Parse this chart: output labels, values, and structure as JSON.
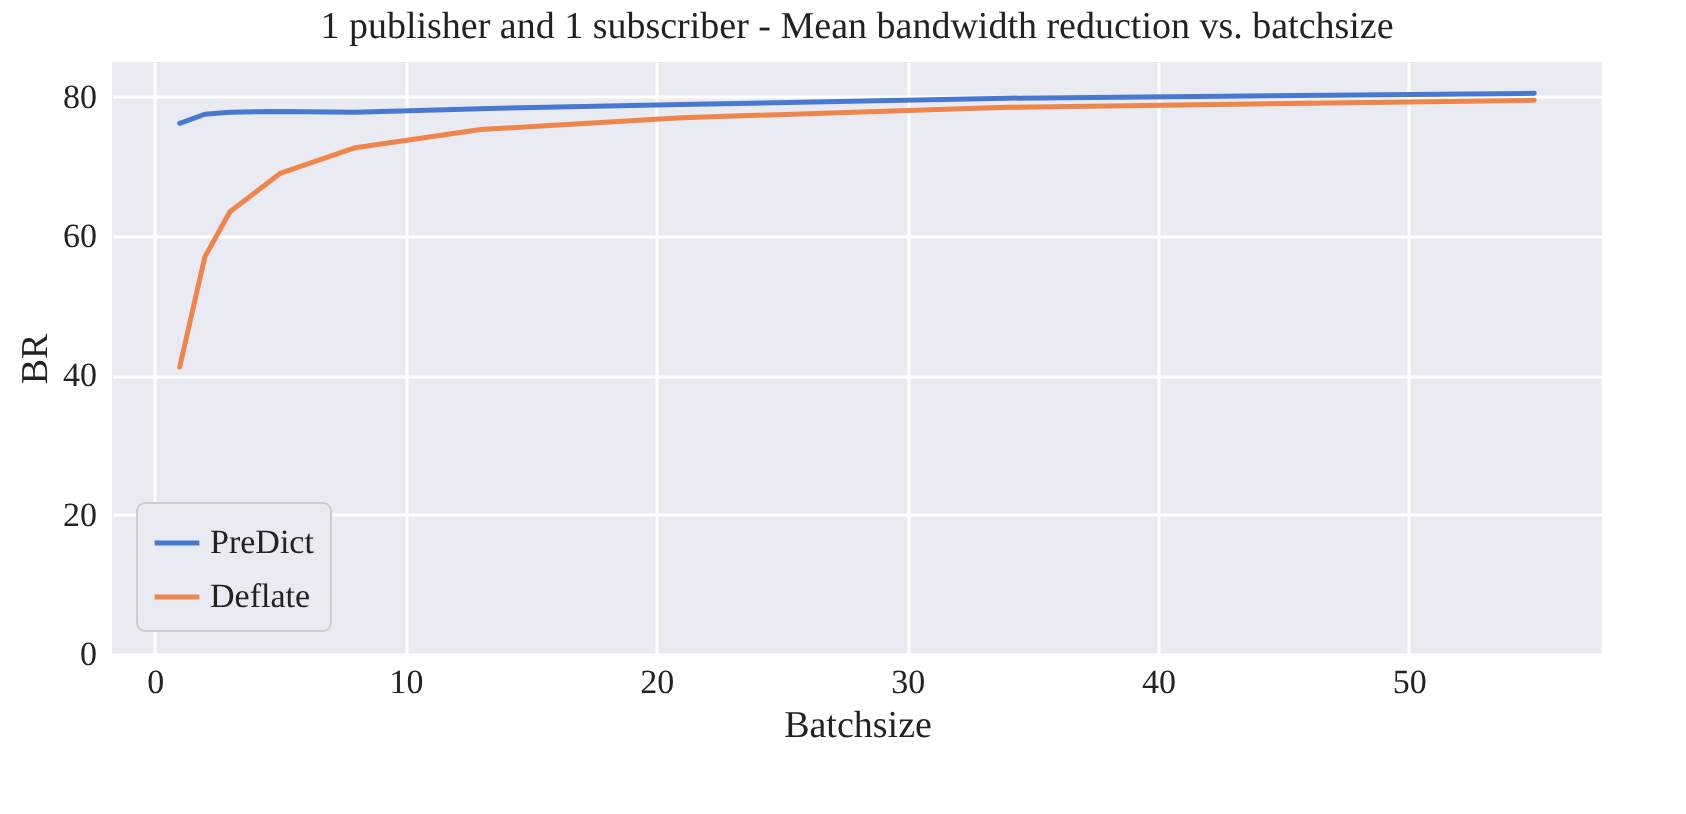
{
  "chart_data": {
    "type": "line",
    "title": "1 publisher and 1 subscriber - Mean bandwidth reduction vs. batchsize",
    "xlabel": "Batchsize",
    "ylabel": "BR",
    "x": [
      1,
      2,
      3,
      5,
      8,
      13,
      21,
      34,
      55
    ],
    "series": [
      {
        "name": "PreDict",
        "color": "#4878d0",
        "values": [
          76.2,
          77.5,
          77.8,
          77.9,
          77.8,
          78.3,
          78.9,
          79.8,
          80.5
        ]
      },
      {
        "name": "Deflate",
        "color": "#ee854a",
        "values": [
          41.2,
          57,
          63.5,
          69,
          72.7,
          75.3,
          77,
          78.5,
          79.5
        ]
      }
    ],
    "xlim": [
      -1.7,
      57.7
    ],
    "xticks": [
      0,
      10,
      20,
      30,
      40,
      50
    ],
    "ylim": [
      0,
      85
    ],
    "yticks": [
      0,
      20,
      40,
      60,
      80
    ],
    "grid": true,
    "legend": "bottom left",
    "marker": "none",
    "line_style": "solid"
  }
}
